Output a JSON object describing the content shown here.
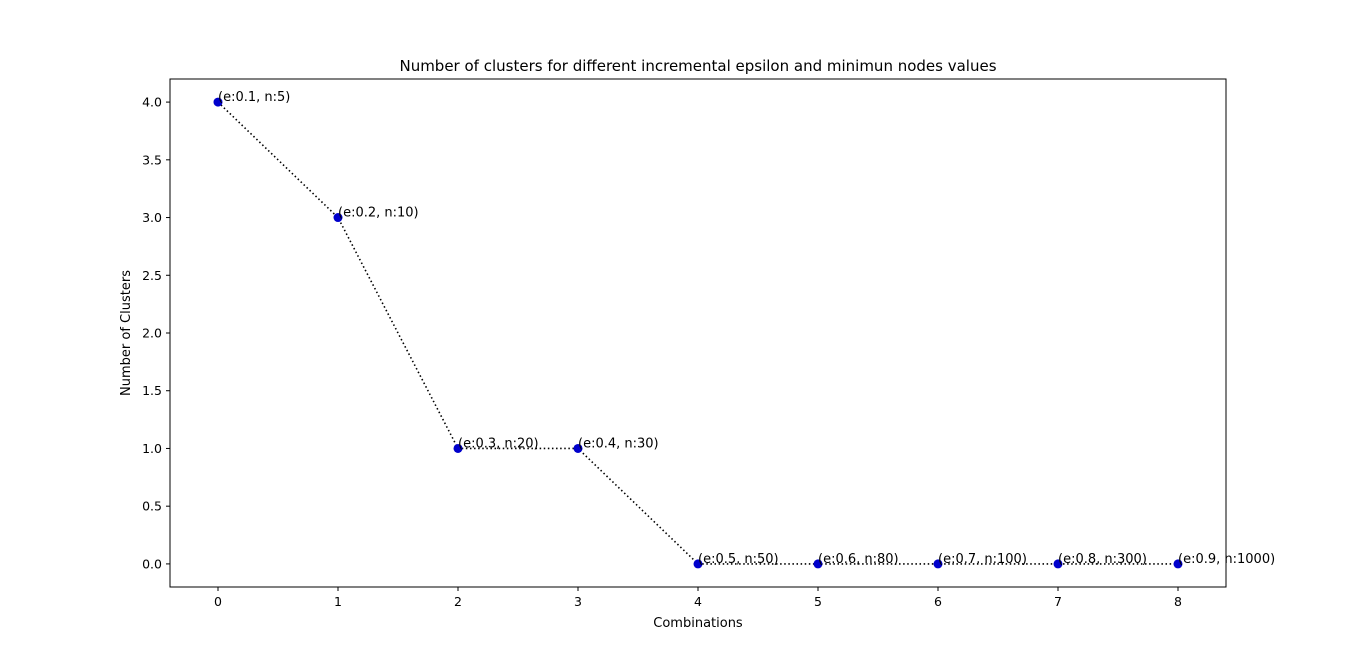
{
  "chart_data": {
    "type": "line",
    "title": "Number of clusters for different incremental epsilon and minimun nodes values",
    "xlabel": "Combinations",
    "ylabel": "Number of Clusters",
    "x": [
      0,
      1,
      2,
      3,
      4,
      5,
      6,
      7,
      8
    ],
    "y": [
      4.0,
      3.0,
      1.0,
      1.0,
      0.0,
      0.0,
      0.0,
      0.0,
      0.0
    ],
    "annotations": [
      "(e:0.1, n:5)",
      "(e:0.2, n:10)",
      "(e:0.3, n:20)",
      "(e:0.4, n:30)",
      "(e:0.5, n:50)",
      "(e:0.6, n:80)",
      "(e:0.7, n:100)",
      "(e:0.8, n:300)",
      "(e:0.9, n:1000)"
    ],
    "xlim": [
      -0.4,
      8.4
    ],
    "ylim": [
      -0.2,
      4.2
    ],
    "xticks": [
      0,
      1,
      2,
      3,
      4,
      5,
      6,
      7,
      8
    ],
    "xtick_labels": [
      "0",
      "1",
      "2",
      "3",
      "4",
      "5",
      "6",
      "7",
      "8"
    ],
    "yticks": [
      0.0,
      0.5,
      1.0,
      1.5,
      2.0,
      2.5,
      3.0,
      3.5,
      4.0
    ],
    "ytick_labels": [
      "0.0",
      "0.5",
      "1.0",
      "1.5",
      "2.0",
      "2.5",
      "3.0",
      "3.5",
      "4.0"
    ],
    "line_style": "dotted",
    "line_color": "#000000",
    "marker_color": "#0000cc",
    "grid": false,
    "legend": "none"
  }
}
